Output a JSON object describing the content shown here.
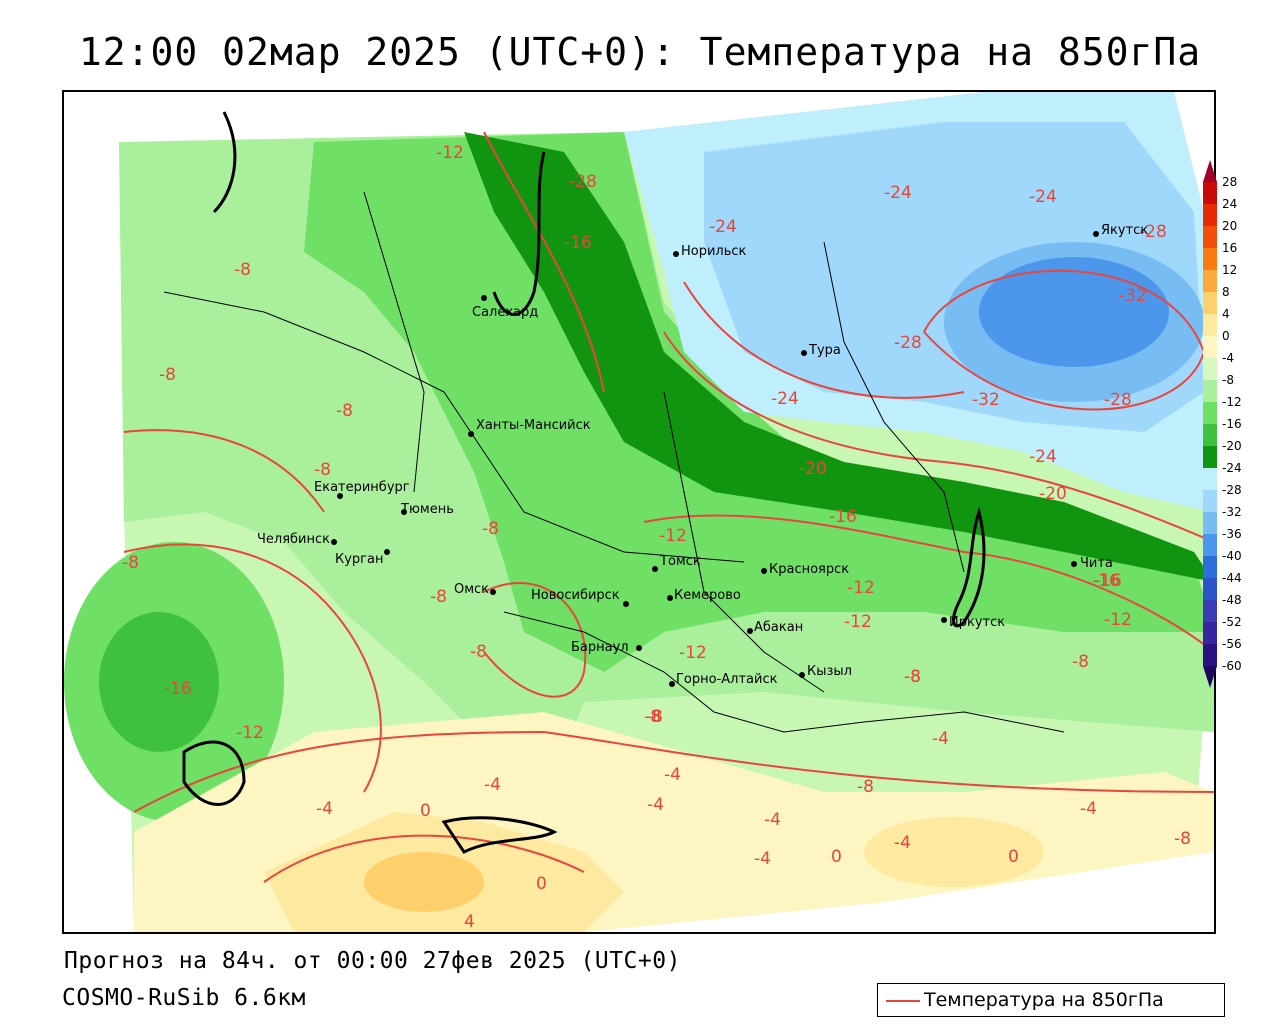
{
  "header": {
    "title": "12:00 02мар 2025 (UTC+0): Температура на 850гПа"
  },
  "footer": {
    "forecast": "Прогноз на 84ч. от 00:00 27фев 2025 (UTC+0)",
    "model": "COSMO-RuSib 6.6км",
    "legend_label": "Температура на 850гПа",
    "legend_color": "#e8453c"
  },
  "colorbar": {
    "ticks": [
      "28",
      "24",
      "20",
      "16",
      "12",
      "8",
      "4",
      "0",
      "-4",
      "-8",
      "-12",
      "-16",
      "-20",
      "-24",
      "-28",
      "-32",
      "-36",
      "-40",
      "-44",
      "-48",
      "-52",
      "-56",
      "-60"
    ],
    "colors": [
      "#a0002c",
      "#c80a0a",
      "#e82a0a",
      "#f2500a",
      "#fa7a14",
      "#fca83a",
      "#fdd06c",
      "#fee9a0",
      "#fdf6c2",
      "#d6f7c0",
      "#a9ef9c",
      "#6fdf66",
      "#3fc03f",
      "#119511",
      "#bfeefc",
      "#9fd8fa",
      "#78bcf4",
      "#4c97ec",
      "#2c6fdc",
      "#2a54c8",
      "#3a3cb6",
      "#3826a0",
      "#2a1282",
      "#1c0860"
    ]
  },
  "cities": [
    {
      "name": "Салехард"
    },
    {
      "name": "Норильск"
    },
    {
      "name": "Якутск"
    },
    {
      "name": "Тура"
    },
    {
      "name": "Ханты-Мансийск"
    },
    {
      "name": "Екатеринбург"
    },
    {
      "name": "Тюмень"
    },
    {
      "name": "Челябинск"
    },
    {
      "name": "Курган"
    },
    {
      "name": "Омск"
    },
    {
      "name": "Новосибирск"
    },
    {
      "name": "Томск"
    },
    {
      "name": "Красноярск"
    },
    {
      "name": "Кемерово"
    },
    {
      "name": "Барнаул"
    },
    {
      "name": "Абакан"
    },
    {
      "name": "Горно-Алтайск"
    },
    {
      "name": "Кызыл"
    },
    {
      "name": "Иркутск"
    },
    {
      "name": "Чита"
    }
  ],
  "contour_labels": [
    "-12",
    "-28",
    "-16",
    "-8",
    "-24",
    "-24",
    "-24",
    "-28",
    "-32",
    "-28",
    "-32",
    "-28",
    "-24",
    "-8",
    "-8",
    "-8",
    "-8",
    "-8",
    "-8",
    "-8",
    "-16",
    "-12",
    "-20",
    "-16",
    "-24",
    "-20",
    "-12",
    "-12",
    "-12",
    "-16",
    "-12",
    "-8",
    "-8",
    "-8",
    "-4",
    "-4",
    "-4",
    "-4",
    "-4",
    "-4",
    "-4",
    "-8",
    "-4",
    "0",
    "0",
    "0",
    "0",
    "-4",
    "4",
    "-8",
    "-8",
    "-8",
    "-12",
    "-16"
  ]
}
